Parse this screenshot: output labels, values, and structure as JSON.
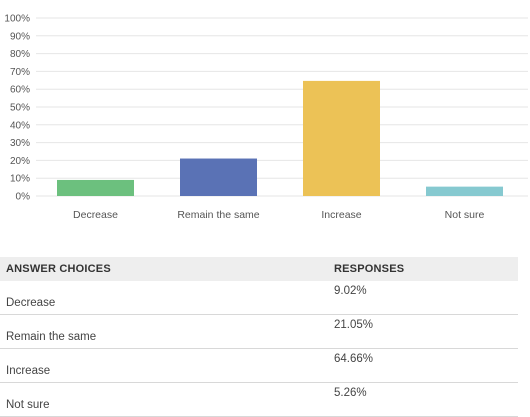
{
  "chart_data": {
    "type": "bar",
    "categories": [
      "Decrease",
      "Remain the same",
      "Increase",
      "Not sure"
    ],
    "values": [
      9.02,
      21.05,
      64.66,
      5.26
    ],
    "colors": [
      "#6cc07e",
      "#5a72b5",
      "#ecc256",
      "#86c9d0"
    ],
    "ylim": [
      0,
      100
    ],
    "yticks": [
      "0%",
      "10%",
      "20%",
      "30%",
      "40%",
      "50%",
      "60%",
      "70%",
      "80%",
      "90%",
      "100%"
    ],
    "grid": true
  },
  "table": {
    "headers": [
      "ANSWER CHOICES",
      "RESPONSES"
    ],
    "rows": [
      {
        "choice": "Decrease",
        "response": "9.02%"
      },
      {
        "choice": "Remain the same",
        "response": "21.05%"
      },
      {
        "choice": "Increase",
        "response": "64.66%"
      },
      {
        "choice": "Not sure",
        "response": "5.26%"
      }
    ]
  }
}
